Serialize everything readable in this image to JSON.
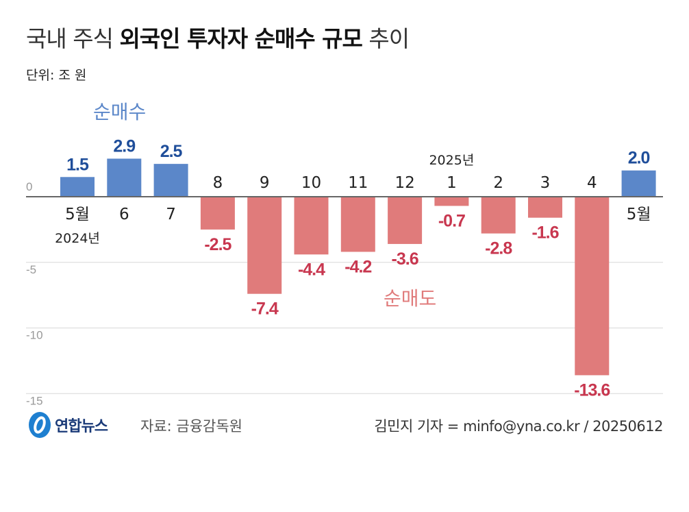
{
  "title": {
    "light_prefix": "국내 주식",
    "bold": "외국인 투자자 순매수 규모",
    "light_suffix": "추이"
  },
  "unit": "단위: 조 원",
  "annotations": {
    "buy": "순매수",
    "sell": "순매도",
    "year_2024": "2024년",
    "year_2025": "2025년"
  },
  "footer": {
    "logo": "연합뉴스",
    "source": "자료: 금융감독원",
    "credit": "김민지 기자 = minfo@yna.co.kr / 20250612"
  },
  "colors": {
    "positive_bar": "#5b87c9",
    "negative_bar": "#e07b7b",
    "positive_label": "#1f4e9a",
    "negative_label": "#c8374f"
  },
  "chart_data": {
    "type": "bar",
    "categories": [
      "5월",
      "6",
      "7",
      "8",
      "9",
      "10",
      "11",
      "12",
      "1",
      "2",
      "3",
      "4",
      "5월"
    ],
    "values": [
      1.5,
      2.9,
      2.5,
      -2.5,
      -7.4,
      -4.4,
      -4.2,
      -3.6,
      -0.7,
      -2.8,
      -1.6,
      -13.6,
      2.0
    ],
    "data_labels": [
      "1.5",
      "2.9",
      "2.5",
      "-2.5",
      "-7.4",
      "-4.4",
      "-4.2",
      "-3.6",
      "-0.7",
      "-2.8",
      "-1.6",
      "-13.6",
      "2.0"
    ],
    "yticks": [
      0,
      -5,
      -10,
      -15
    ],
    "ytick_labels": [
      "0",
      "-5",
      "-10",
      "-15"
    ],
    "ylim": [
      -15,
      3
    ],
    "grid": true
  }
}
